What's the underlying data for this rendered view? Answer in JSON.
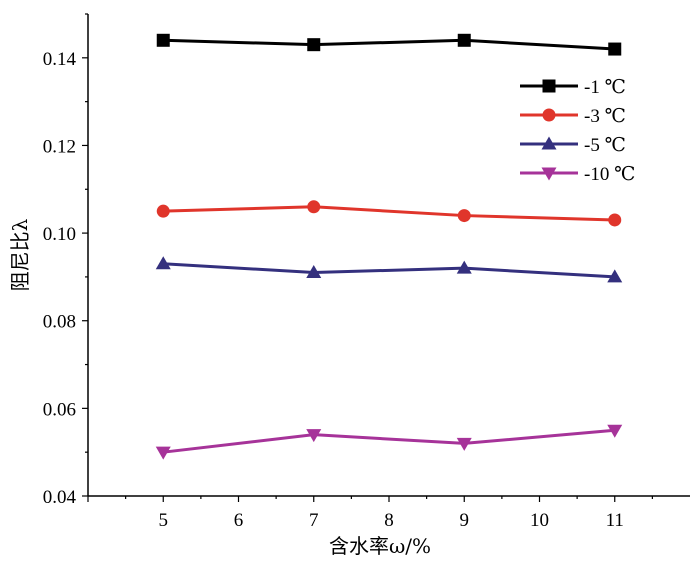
{
  "chart_data": {
    "type": "line",
    "title": "",
    "xlabel": "含水率ω/%",
    "ylabel": "阻尼比λ",
    "x": [
      5,
      7,
      9,
      11
    ],
    "xlim": [
      4,
      12
    ],
    "ylim": [
      0.04,
      0.15
    ],
    "xticks": [
      "5",
      "6",
      "7",
      "8",
      "9",
      "10",
      "11"
    ],
    "yticks": [
      "0.04",
      "0.06",
      "0.08",
      "0.10",
      "0.12",
      "0.14"
    ],
    "grid": false,
    "legend_position": "top-right",
    "series": [
      {
        "name": "-1 ℃",
        "values": [
          0.144,
          0.143,
          0.144,
          0.142
        ],
        "color": "#000000",
        "marker": "square"
      },
      {
        "name": "-3 ℃",
        "values": [
          0.105,
          0.106,
          0.104,
          0.103
        ],
        "color": "#e0352b",
        "marker": "circle"
      },
      {
        "name": "-5 ℃",
        "values": [
          0.093,
          0.091,
          0.092,
          0.09
        ],
        "color": "#34307e",
        "marker": "triangle-up"
      },
      {
        "name": "-10 ℃",
        "values": [
          0.05,
          0.054,
          0.052,
          0.055
        ],
        "color": "#a63399",
        "marker": "triangle-down"
      }
    ]
  }
}
